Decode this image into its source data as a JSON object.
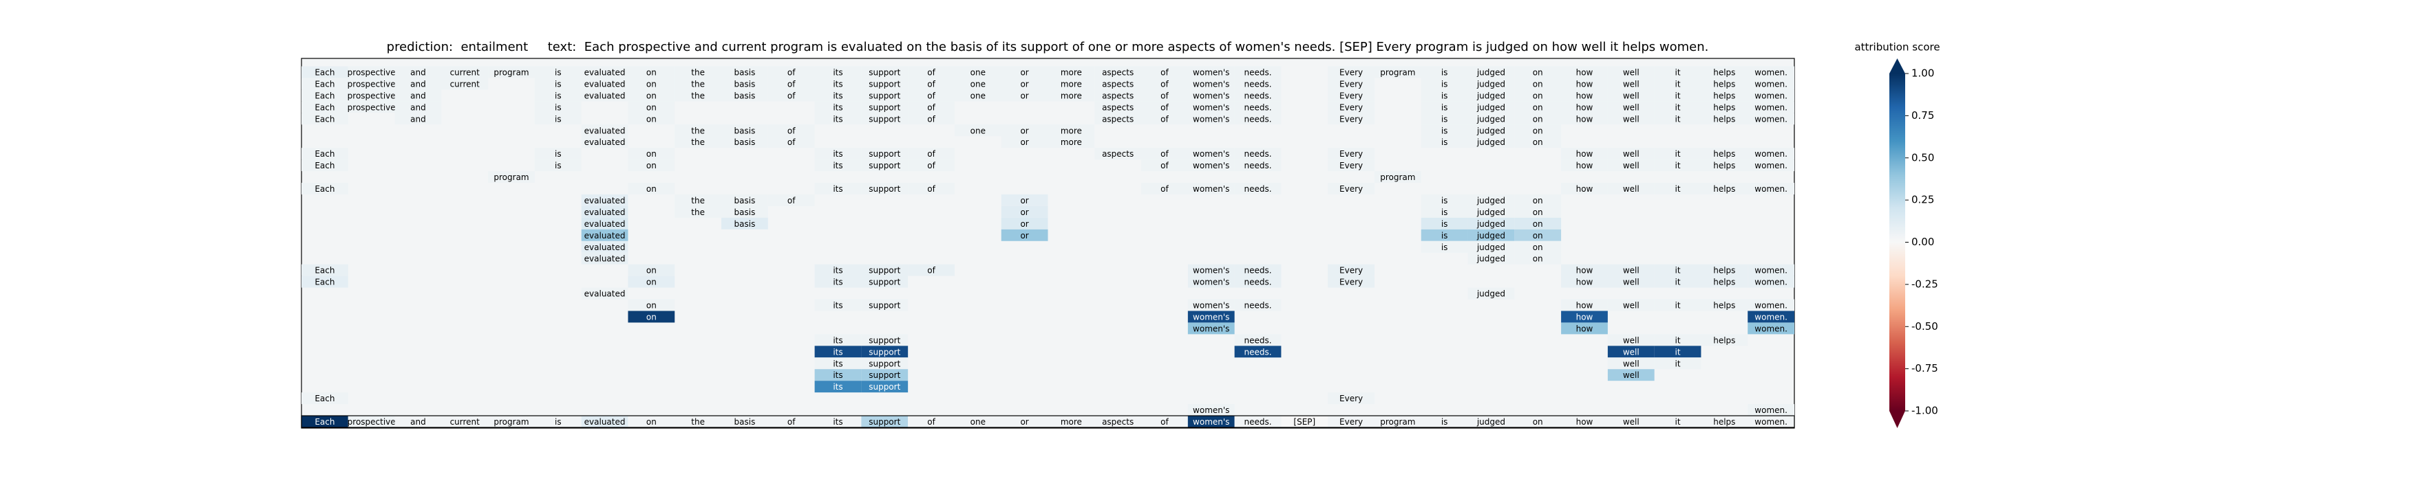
{
  "chart_data": {
    "type": "heatmap",
    "title": "prediction:  entailment     text:  Each prospective and current program is evaluated on the basis of its support of one or more aspects of women's needs. [SEP] Every program is judged on how well it helps women.",
    "tokens": [
      "Each",
      "prospective",
      "and",
      "current",
      "program",
      "is",
      "evaluated",
      "on",
      "the",
      "basis",
      "of",
      "its",
      "support",
      "of",
      "one",
      "or",
      "more",
      "aspects",
      "of",
      "women's",
      "needs.",
      "[SEP]",
      "Every",
      "program",
      "is",
      "judged",
      "on",
      "how",
      "well",
      "it",
      "helps",
      "women."
    ],
    "rows": [
      [
        0.08,
        0.05,
        0.05,
        0.05,
        0.05,
        0.05,
        0.05,
        0.05,
        0.05,
        0.05,
        0.05,
        0.05,
        0.05,
        0.05,
        0.05,
        0.05,
        0.05,
        0.05,
        0.05,
        0.05,
        0.05,
        null,
        0.05,
        0.05,
        0.05,
        0.05,
        0.05,
        0.05,
        0.05,
        0.05,
        0.05,
        0.05
      ],
      [
        0.05,
        0.05,
        0.05,
        0.05,
        null,
        0.05,
        0.05,
        0.05,
        0.05,
        0.05,
        0.05,
        0.05,
        0.05,
        0.05,
        0.05,
        0.05,
        0.05,
        0.05,
        0.05,
        0.05,
        0.05,
        null,
        0.05,
        null,
        0.05,
        0.05,
        0.05,
        0.05,
        0.05,
        0.05,
        0.05,
        0.05
      ],
      [
        0.05,
        0.05,
        0.05,
        null,
        null,
        0.05,
        0.05,
        0.05,
        0.05,
        0.05,
        0.05,
        0.05,
        0.05,
        0.05,
        0.05,
        0.05,
        0.05,
        0.05,
        0.05,
        0.05,
        0.05,
        null,
        0.05,
        null,
        0.05,
        0.05,
        0.05,
        0.05,
        0.05,
        0.05,
        0.05,
        0.05
      ],
      [
        0.05,
        0.05,
        0.05,
        null,
        null,
        0.05,
        null,
        0.05,
        null,
        null,
        null,
        0.05,
        0.05,
        0.05,
        null,
        null,
        null,
        0.05,
        0.05,
        0.05,
        0.05,
        null,
        0.05,
        null,
        0.05,
        0.05,
        0.05,
        0.05,
        0.05,
        0.05,
        0.05,
        0.05
      ],
      [
        0.05,
        null,
        0.05,
        null,
        null,
        0.05,
        null,
        0.05,
        null,
        null,
        null,
        0.05,
        0.05,
        0.05,
        null,
        null,
        null,
        0.05,
        0.05,
        0.05,
        0.05,
        null,
        0.05,
        null,
        0.05,
        0.05,
        0.05,
        0.05,
        0.05,
        0.05,
        0.05,
        0.05
      ],
      [
        null,
        null,
        null,
        null,
        null,
        null,
        0.05,
        null,
        0.05,
        0.05,
        0.05,
        null,
        null,
        null,
        0.05,
        0.05,
        0.05,
        null,
        null,
        null,
        null,
        null,
        null,
        null,
        0.05,
        0.05,
        0.05,
        null,
        null,
        null,
        null,
        null
      ],
      [
        null,
        null,
        null,
        null,
        null,
        null,
        0.05,
        null,
        0.05,
        0.05,
        0.05,
        null,
        null,
        null,
        null,
        0.05,
        0.05,
        null,
        null,
        null,
        null,
        null,
        null,
        null,
        0.05,
        0.05,
        0.05,
        null,
        null,
        null,
        null,
        null
      ],
      [
        0.05,
        null,
        null,
        null,
        null,
        0.05,
        null,
        0.05,
        null,
        null,
        null,
        0.05,
        0.05,
        0.05,
        null,
        null,
        null,
        0.05,
        0.05,
        0.05,
        0.05,
        null,
        0.05,
        null,
        null,
        null,
        null,
        0.05,
        0.05,
        0.05,
        0.05,
        0.05
      ],
      [
        0.05,
        null,
        null,
        null,
        null,
        0.05,
        null,
        0.05,
        null,
        null,
        null,
        0.05,
        0.05,
        0.05,
        null,
        null,
        null,
        null,
        0.05,
        0.05,
        0.05,
        null,
        0.05,
        null,
        null,
        null,
        null,
        0.05,
        0.05,
        0.05,
        0.05,
        0.05
      ],
      [
        null,
        null,
        null,
        null,
        0.05,
        null,
        null,
        null,
        null,
        null,
        null,
        null,
        null,
        null,
        null,
        null,
        null,
        null,
        null,
        null,
        null,
        null,
        null,
        0.05,
        null,
        null,
        null,
        null,
        null,
        null,
        null,
        null
      ],
      [
        0.05,
        null,
        null,
        null,
        null,
        null,
        null,
        0.05,
        null,
        null,
        null,
        0.05,
        0.05,
        0.05,
        null,
        null,
        null,
        null,
        0.05,
        0.05,
        0.05,
        null,
        0.05,
        null,
        null,
        null,
        null,
        0.05,
        0.05,
        0.05,
        0.05,
        0.05
      ],
      [
        null,
        null,
        null,
        null,
        null,
        null,
        0.1,
        null,
        0.05,
        0.05,
        0.05,
        null,
        null,
        null,
        null,
        0.1,
        null,
        null,
        null,
        null,
        null,
        null,
        null,
        null,
        0.05,
        0.05,
        0.05,
        null,
        null,
        null,
        null,
        null
      ],
      [
        null,
        null,
        null,
        null,
        null,
        null,
        0.12,
        null,
        0.05,
        0.05,
        null,
        null,
        null,
        null,
        null,
        0.12,
        null,
        null,
        null,
        null,
        null,
        null,
        null,
        null,
        0.05,
        0.05,
        0.05,
        null,
        null,
        null,
        null,
        null
      ],
      [
        null,
        null,
        null,
        null,
        null,
        null,
        0.15,
        null,
        null,
        0.12,
        null,
        null,
        null,
        null,
        null,
        0.15,
        null,
        null,
        null,
        null,
        null,
        null,
        null,
        null,
        0.15,
        0.15,
        0.15,
        null,
        null,
        null,
        null,
        null
      ],
      [
        null,
        null,
        null,
        null,
        null,
        null,
        0.38,
        null,
        null,
        null,
        null,
        null,
        null,
        null,
        null,
        0.38,
        null,
        null,
        null,
        null,
        null,
        null,
        null,
        null,
        0.35,
        0.35,
        0.3,
        null,
        null,
        null,
        null,
        null
      ],
      [
        null,
        null,
        null,
        null,
        null,
        null,
        0.1,
        null,
        null,
        null,
        null,
        null,
        null,
        null,
        null,
        null,
        null,
        null,
        null,
        null,
        null,
        null,
        null,
        null,
        0.05,
        0.05,
        0.05,
        null,
        null,
        null,
        null,
        null
      ],
      [
        null,
        null,
        null,
        null,
        null,
        null,
        0.08,
        null,
        null,
        null,
        null,
        null,
        null,
        null,
        null,
        null,
        null,
        null,
        null,
        null,
        null,
        null,
        null,
        null,
        null,
        0.05,
        0.05,
        null,
        null,
        null,
        null,
        null
      ],
      [
        0.08,
        null,
        null,
        null,
        null,
        null,
        null,
        0.08,
        null,
        null,
        null,
        0.08,
        0.08,
        0.08,
        null,
        null,
        null,
        null,
        null,
        0.08,
        0.08,
        null,
        0.08,
        null,
        null,
        null,
        null,
        0.08,
        0.08,
        0.08,
        0.08,
        0.08
      ],
      [
        0.1,
        null,
        null,
        null,
        null,
        null,
        null,
        0.1,
        null,
        null,
        null,
        0.08,
        0.08,
        null,
        null,
        null,
        null,
        null,
        null,
        0.08,
        0.08,
        null,
        0.08,
        null,
        null,
        null,
        null,
        0.08,
        0.08,
        0.08,
        0.08,
        0.08
      ],
      [
        null,
        null,
        null,
        null,
        null,
        null,
        0.05,
        null,
        null,
        null,
        null,
        null,
        null,
        null,
        null,
        null,
        null,
        null,
        null,
        null,
        null,
        null,
        null,
        null,
        null,
        0.05,
        null,
        null,
        null,
        null,
        null,
        null
      ],
      [
        null,
        null,
        null,
        null,
        null,
        null,
        null,
        0.05,
        null,
        null,
        null,
        0.05,
        0.05,
        null,
        null,
        null,
        null,
        null,
        null,
        0.05,
        0.05,
        null,
        null,
        null,
        null,
        null,
        null,
        0.05,
        0.05,
        0.05,
        0.05,
        0.05
      ],
      [
        null,
        null,
        null,
        null,
        null,
        null,
        null,
        0.95,
        null,
        null,
        null,
        null,
        null,
        null,
        null,
        null,
        null,
        null,
        null,
        0.9,
        null,
        null,
        null,
        null,
        null,
        null,
        null,
        0.85,
        null,
        null,
        null,
        0.9
      ],
      [
        null,
        null,
        null,
        null,
        null,
        null,
        null,
        null,
        null,
        null,
        null,
        null,
        null,
        null,
        null,
        null,
        null,
        null,
        null,
        0.4,
        null,
        null,
        null,
        null,
        null,
        null,
        null,
        0.4,
        null,
        null,
        null,
        0.4
      ],
      [
        null,
        null,
        null,
        null,
        null,
        null,
        null,
        null,
        null,
        null,
        null,
        0.05,
        0.05,
        null,
        null,
        null,
        null,
        null,
        null,
        null,
        0.05,
        null,
        null,
        null,
        null,
        null,
        null,
        null,
        0.05,
        0.05,
        0.05,
        null
      ],
      [
        null,
        null,
        null,
        null,
        null,
        null,
        null,
        null,
        null,
        null,
        null,
        0.9,
        0.9,
        null,
        null,
        null,
        null,
        null,
        null,
        null,
        0.9,
        null,
        null,
        null,
        null,
        null,
        null,
        null,
        0.9,
        0.9,
        null,
        null
      ],
      [
        null,
        null,
        null,
        null,
        null,
        null,
        null,
        null,
        null,
        null,
        null,
        0.05,
        0.05,
        null,
        null,
        null,
        null,
        null,
        null,
        null,
        null,
        null,
        null,
        null,
        null,
        null,
        null,
        null,
        0.05,
        0.05,
        null,
        null
      ],
      [
        null,
        null,
        null,
        null,
        null,
        null,
        null,
        null,
        null,
        null,
        null,
        0.35,
        0.35,
        null,
        null,
        null,
        null,
        null,
        null,
        null,
        null,
        null,
        null,
        null,
        null,
        null,
        null,
        null,
        0.35,
        null,
        null,
        null
      ],
      [
        null,
        null,
        null,
        null,
        null,
        null,
        null,
        null,
        null,
        null,
        null,
        0.65,
        0.65,
        null,
        null,
        null,
        null,
        null,
        null,
        null,
        null,
        null,
        null,
        null,
        null,
        null,
        null,
        null,
        null,
        null,
        null,
        null
      ],
      [
        0.05,
        null,
        null,
        null,
        null,
        null,
        null,
        null,
        null,
        null,
        null,
        null,
        null,
        null,
        null,
        null,
        null,
        null,
        null,
        null,
        null,
        null,
        0.05,
        null,
        null,
        null,
        null,
        null,
        null,
        null,
        null,
        null
      ],
      [
        null,
        null,
        null,
        null,
        null,
        null,
        null,
        null,
        null,
        null,
        null,
        null,
        null,
        null,
        null,
        null,
        null,
        null,
        null,
        0.05,
        null,
        null,
        null,
        null,
        null,
        null,
        null,
        null,
        null,
        null,
        null,
        0.05
      ],
      [
        1.0,
        0.05,
        0.03,
        0.03,
        0.03,
        0.03,
        0.12,
        0.03,
        0.03,
        0.03,
        0.03,
        0.03,
        0.3,
        0.03,
        0.03,
        0.03,
        0.03,
        0.03,
        0.03,
        0.95,
        0.03,
        0,
        0.03,
        0.03,
        0.03,
        0.03,
        0.03,
        0.03,
        0.03,
        0.03,
        0.03,
        0.03
      ]
    ],
    "colorbar_label": "attribution score",
    "clim": [
      -1,
      1
    ],
    "cticks": [
      {
        "value": 1,
        "label": "1.00"
      },
      0.75,
      {
        "value": 0.5,
        "label": "0.50"
      },
      0.25,
      {
        "value": 0,
        "label": "0.00"
      },
      -0.25,
      {
        "value": -0.5,
        "label": "-0.50"
      },
      -0.75,
      {
        "value": -1,
        "label": "-1.00"
      }
    ],
    "colormap": "RdBu"
  }
}
